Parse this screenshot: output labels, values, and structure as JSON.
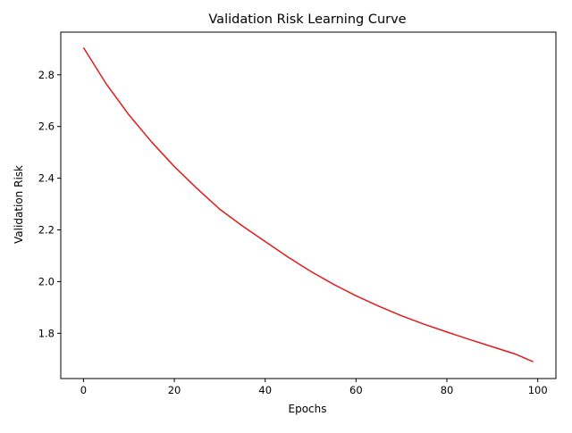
{
  "chart_data": {
    "type": "line",
    "title": "Validation Risk Learning Curve",
    "xlabel": "Epochs",
    "ylabel": "Validation Risk",
    "xlim": [
      -5,
      104
    ],
    "ylim": [
      1.625,
      2.965
    ],
    "xticks": [
      0,
      20,
      40,
      60,
      80,
      100
    ],
    "xtick_labels": [
      "0",
      "20",
      "40",
      "60",
      "80",
      "100"
    ],
    "yticks": [
      1.8,
      2.0,
      2.2,
      2.4,
      2.6,
      2.8
    ],
    "ytick_labels": [
      "1.8",
      "2.0",
      "2.2",
      "2.4",
      "2.6",
      "2.8"
    ],
    "grid": false,
    "legend": "none",
    "series": [
      {
        "color": "#e31a1c",
        "x": [
          0,
          5,
          10,
          15,
          20,
          25,
          30,
          35,
          40,
          45,
          50,
          55,
          60,
          65,
          70,
          75,
          80,
          85,
          90,
          95,
          99
        ],
        "y": [
          2.905,
          2.765,
          2.645,
          2.54,
          2.445,
          2.36,
          2.28,
          2.215,
          2.155,
          2.095,
          2.04,
          1.99,
          1.945,
          1.905,
          1.868,
          1.835,
          1.805,
          1.776,
          1.748,
          1.72,
          1.69
        ]
      }
    ]
  }
}
